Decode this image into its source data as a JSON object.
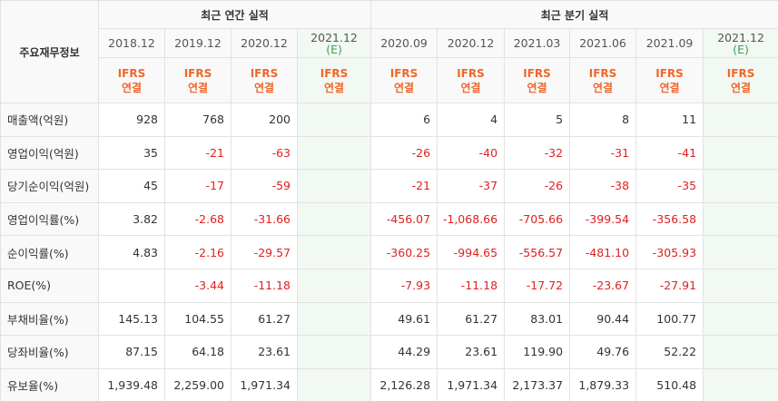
{
  "header": {
    "corner_label": "주요재무정보",
    "annual_title": "최근 연간 실적",
    "quarter_title": "최근 분기 실적"
  },
  "periods": {
    "annual": [
      {
        "date": "2018.12",
        "std": "IFRS",
        "basis": "연결",
        "estimate": false
      },
      {
        "date": "2019.12",
        "std": "IFRS",
        "basis": "연결",
        "estimate": false
      },
      {
        "date": "2020.12",
        "std": "IFRS",
        "basis": "연결",
        "estimate": false
      },
      {
        "date": "2021.12",
        "sub": "(E)",
        "std": "IFRS",
        "basis": "연결",
        "estimate": true
      }
    ],
    "quarter": [
      {
        "date": "2020.09",
        "std": "IFRS",
        "basis": "연결",
        "estimate": false
      },
      {
        "date": "2020.12",
        "std": "IFRS",
        "basis": "연결",
        "estimate": false
      },
      {
        "date": "2021.03",
        "std": "IFRS",
        "basis": "연결",
        "estimate": false
      },
      {
        "date": "2021.06",
        "std": "IFRS",
        "basis": "연결",
        "estimate": false
      },
      {
        "date": "2021.09",
        "std": "IFRS",
        "basis": "연결",
        "estimate": false
      },
      {
        "date": "2021.12",
        "sub": "(E)",
        "std": "IFRS",
        "basis": "연결",
        "estimate": true
      }
    ]
  },
  "rows": [
    {
      "label": "매출액(억원)",
      "values": [
        "928",
        "768",
        "200",
        "",
        "6",
        "4",
        "5",
        "8",
        "11",
        ""
      ]
    },
    {
      "label": "영업이익(억원)",
      "values": [
        "35",
        "-21",
        "-63",
        "",
        "-26",
        "-40",
        "-32",
        "-31",
        "-41",
        ""
      ]
    },
    {
      "label": "당기순이익(억원)",
      "values": [
        "45",
        "-17",
        "-59",
        "",
        "-21",
        "-37",
        "-26",
        "-38",
        "-35",
        ""
      ]
    },
    {
      "label": "영업이익률(%)",
      "values": [
        "3.82",
        "-2.68",
        "-31.66",
        "",
        "-456.07",
        "-1,068.66",
        "-705.66",
        "-399.54",
        "-356.58",
        ""
      ]
    },
    {
      "label": "순이익률(%)",
      "values": [
        "4.83",
        "-2.16",
        "-29.57",
        "",
        "-360.25",
        "-994.65",
        "-556.57",
        "-481.10",
        "-305.93",
        ""
      ]
    },
    {
      "label": "ROE(%)",
      "values": [
        "",
        "-3.44",
        "-11.18",
        "",
        "-7.93",
        "-11.18",
        "-17.72",
        "-23.67",
        "-27.91",
        ""
      ]
    },
    {
      "label": "부채비율(%)",
      "values": [
        "145.13",
        "104.55",
        "61.27",
        "",
        "49.61",
        "61.27",
        "83.01",
        "90.44",
        "100.77",
        ""
      ]
    },
    {
      "label": "당좌비율(%)",
      "values": [
        "87.15",
        "64.18",
        "23.61",
        "",
        "44.29",
        "23.61",
        "119.90",
        "49.76",
        "52.22",
        ""
      ]
    },
    {
      "label": "유보율(%)",
      "values": [
        "1,939.48",
        "2,259.00",
        "1,971.34",
        "",
        "2,126.28",
        "1,971.34",
        "2,173.37",
        "1,879.33",
        "510.48",
        ""
      ]
    }
  ],
  "colors": {
    "ifrs_text": "#f0662a",
    "negative": "#e02020",
    "estimate_bg": "#f2f8f2",
    "estimate_sub": "#3aa35a",
    "header_bg": "#f9f9f9"
  }
}
